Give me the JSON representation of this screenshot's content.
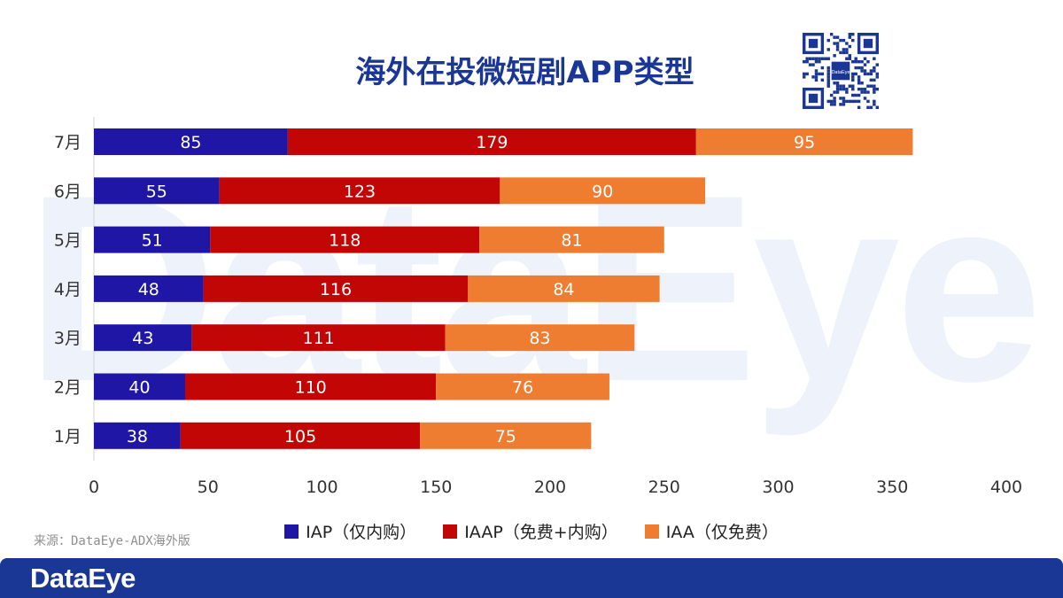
{
  "watermark": "DataEye",
  "qr_label": "DataEye",
  "source_text": "来源：DataEye-ADX海外版",
  "footer": {
    "logo": "DataEye"
  },
  "colors": {
    "iap": "#1f16a6",
    "iaap": "#c20606",
    "iaa": "#ee7d31",
    "title": "#1a3796",
    "footer": "#1a3796"
  },
  "chart_data": {
    "type": "bar",
    "orientation": "horizontal",
    "stacked": true,
    "title": "海外在投微短剧APP类型",
    "categories": [
      "7月",
      "6月",
      "5月",
      "4月",
      "3月",
      "2月",
      "1月"
    ],
    "series": [
      {
        "name": "IAP（仅内购）",
        "values": [
          85,
          55,
          51,
          48,
          43,
          40,
          38
        ]
      },
      {
        "name": "IAAP（免费+内购）",
        "values": [
          179,
          123,
          118,
          116,
          111,
          110,
          105
        ]
      },
      {
        "name": "IAA（仅免费）",
        "values": [
          95,
          90,
          81,
          84,
          83,
          76,
          75
        ]
      }
    ],
    "xlim": [
      0,
      400
    ],
    "xticks": [
      0,
      50,
      100,
      150,
      200,
      250,
      300,
      350,
      400
    ],
    "grid": false,
    "legend_position": "bottom"
  }
}
